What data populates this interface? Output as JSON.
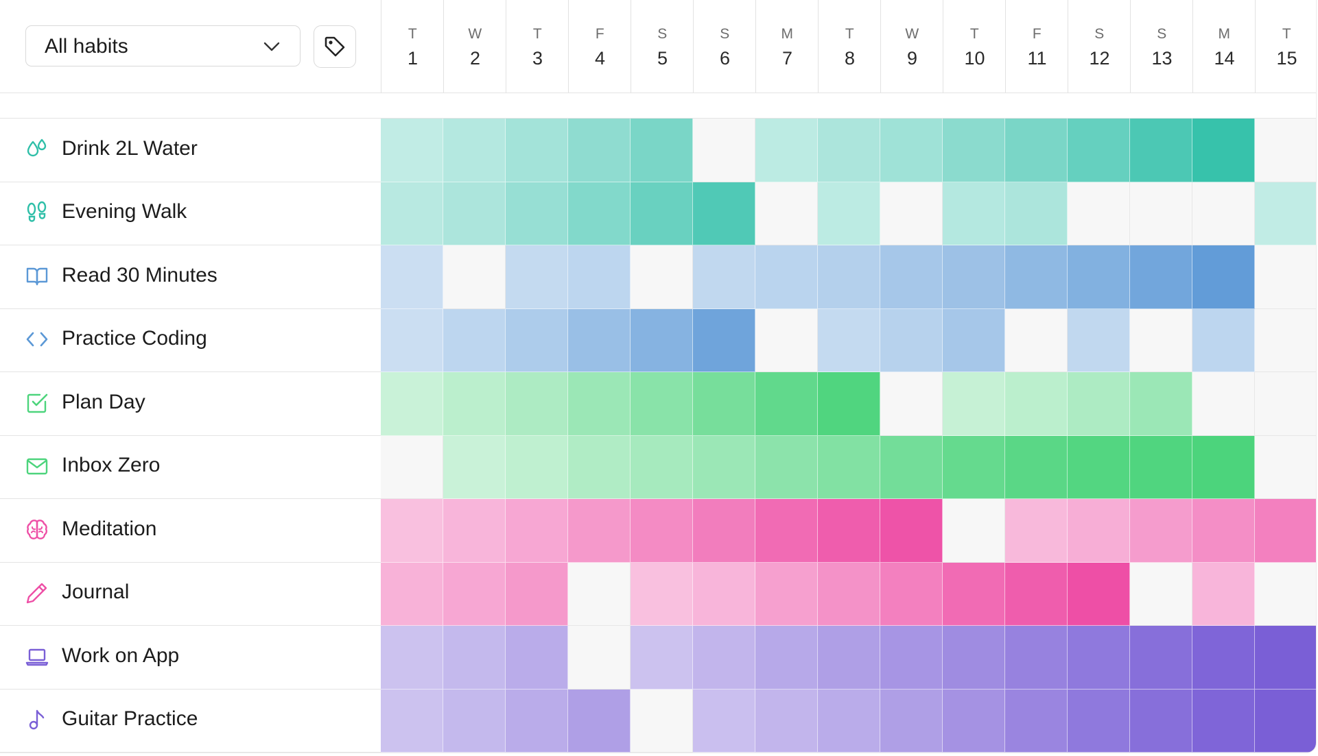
{
  "filter": {
    "label": "All habits"
  },
  "days": [
    {
      "letter": "T",
      "num": "1"
    },
    {
      "letter": "W",
      "num": "2"
    },
    {
      "letter": "T",
      "num": "3"
    },
    {
      "letter": "F",
      "num": "4"
    },
    {
      "letter": "S",
      "num": "5"
    },
    {
      "letter": "S",
      "num": "6"
    },
    {
      "letter": "M",
      "num": "7"
    },
    {
      "letter": "T",
      "num": "8"
    },
    {
      "letter": "W",
      "num": "9"
    },
    {
      "letter": "T",
      "num": "10"
    },
    {
      "letter": "F",
      "num": "11"
    },
    {
      "letter": "S",
      "num": "12"
    },
    {
      "letter": "S",
      "num": "13"
    },
    {
      "letter": "M",
      "num": "14"
    },
    {
      "letter": "T",
      "num": "15"
    }
  ],
  "colors": {
    "teal": "#2fbfa8",
    "blue": "#5b98d6",
    "green": "#4cd47c",
    "pink": "#ee4fa6",
    "purple": "#7a5fd6",
    "empty": "#f7f7f7"
  },
  "habits": [
    {
      "name": "Drink 2L Water",
      "icon": "water-drops-icon",
      "color": "teal",
      "levels": [
        0.3,
        0.36,
        0.44,
        0.54,
        0.64,
        0,
        0.32,
        0.4,
        0.46,
        0.56,
        0.64,
        0.74,
        0.86,
        0.96,
        0
      ]
    },
    {
      "name": "Evening Walk",
      "icon": "footsteps-icon",
      "color": "teal",
      "levels": [
        0.34,
        0.4,
        0.5,
        0.6,
        0.72,
        0.84,
        0,
        0.32,
        0,
        0.36,
        0.4,
        0,
        0,
        0,
        0.3
      ]
    },
    {
      "name": "Read 30 Minutes",
      "icon": "book-icon",
      "color": "blue",
      "levels": [
        0.32,
        0,
        0.36,
        0.4,
        0,
        0.38,
        0.42,
        0.46,
        0.54,
        0.6,
        0.68,
        0.76,
        0.86,
        0.96,
        0
      ]
    },
    {
      "name": "Practice Coding",
      "icon": "code-icon",
      "color": "blue",
      "levels": [
        0.32,
        0.4,
        0.5,
        0.62,
        0.74,
        0.88,
        0,
        0.36,
        0.44,
        0.54,
        0,
        0.38,
        0,
        0.4,
        0
      ]
    },
    {
      "name": "Plan Day",
      "icon": "checkbox-icon",
      "color": "green",
      "levels": [
        0.3,
        0.38,
        0.46,
        0.56,
        0.66,
        0.76,
        0.88,
        0.98,
        0,
        0.32,
        0.38,
        0.46,
        0.56,
        0,
        0
      ]
    },
    {
      "name": "Inbox Zero",
      "icon": "mail-icon",
      "color": "green",
      "levels": [
        0,
        0.3,
        0.36,
        0.44,
        0.5,
        0.56,
        0.64,
        0.7,
        0.78,
        0.86,
        0.92,
        0.96,
        0.98,
        1.0,
        0
      ]
    },
    {
      "name": "Meditation",
      "icon": "brain-icon",
      "color": "pink",
      "levels": [
        0.36,
        0.42,
        0.5,
        0.58,
        0.66,
        0.74,
        0.84,
        0.92,
        0.98,
        0,
        0.4,
        0.46,
        0.56,
        0.64,
        0.72
      ]
    },
    {
      "name": "Journal",
      "icon": "pencil-icon",
      "color": "pink",
      "levels": [
        0.44,
        0.5,
        0.58,
        0,
        0.36,
        0.42,
        0.54,
        0.62,
        0.72,
        0.84,
        0.92,
        1.0,
        0,
        0.42,
        0
      ]
    },
    {
      "name": "Work on App",
      "icon": "laptop-icon",
      "color": "purple",
      "levels": [
        0.38,
        0.44,
        0.52,
        0,
        0.38,
        0.46,
        0.54,
        0.6,
        0.66,
        0.72,
        0.78,
        0.84,
        0.9,
        0.96,
        1.0
      ]
    },
    {
      "name": "Guitar Practice",
      "icon": "music-note-icon",
      "color": "purple",
      "levels": [
        0.38,
        0.44,
        0.52,
        0.6,
        0,
        0.4,
        0.46,
        0.52,
        0.6,
        0.68,
        0.76,
        0.84,
        0.9,
        0.96,
        1.0
      ]
    }
  ]
}
